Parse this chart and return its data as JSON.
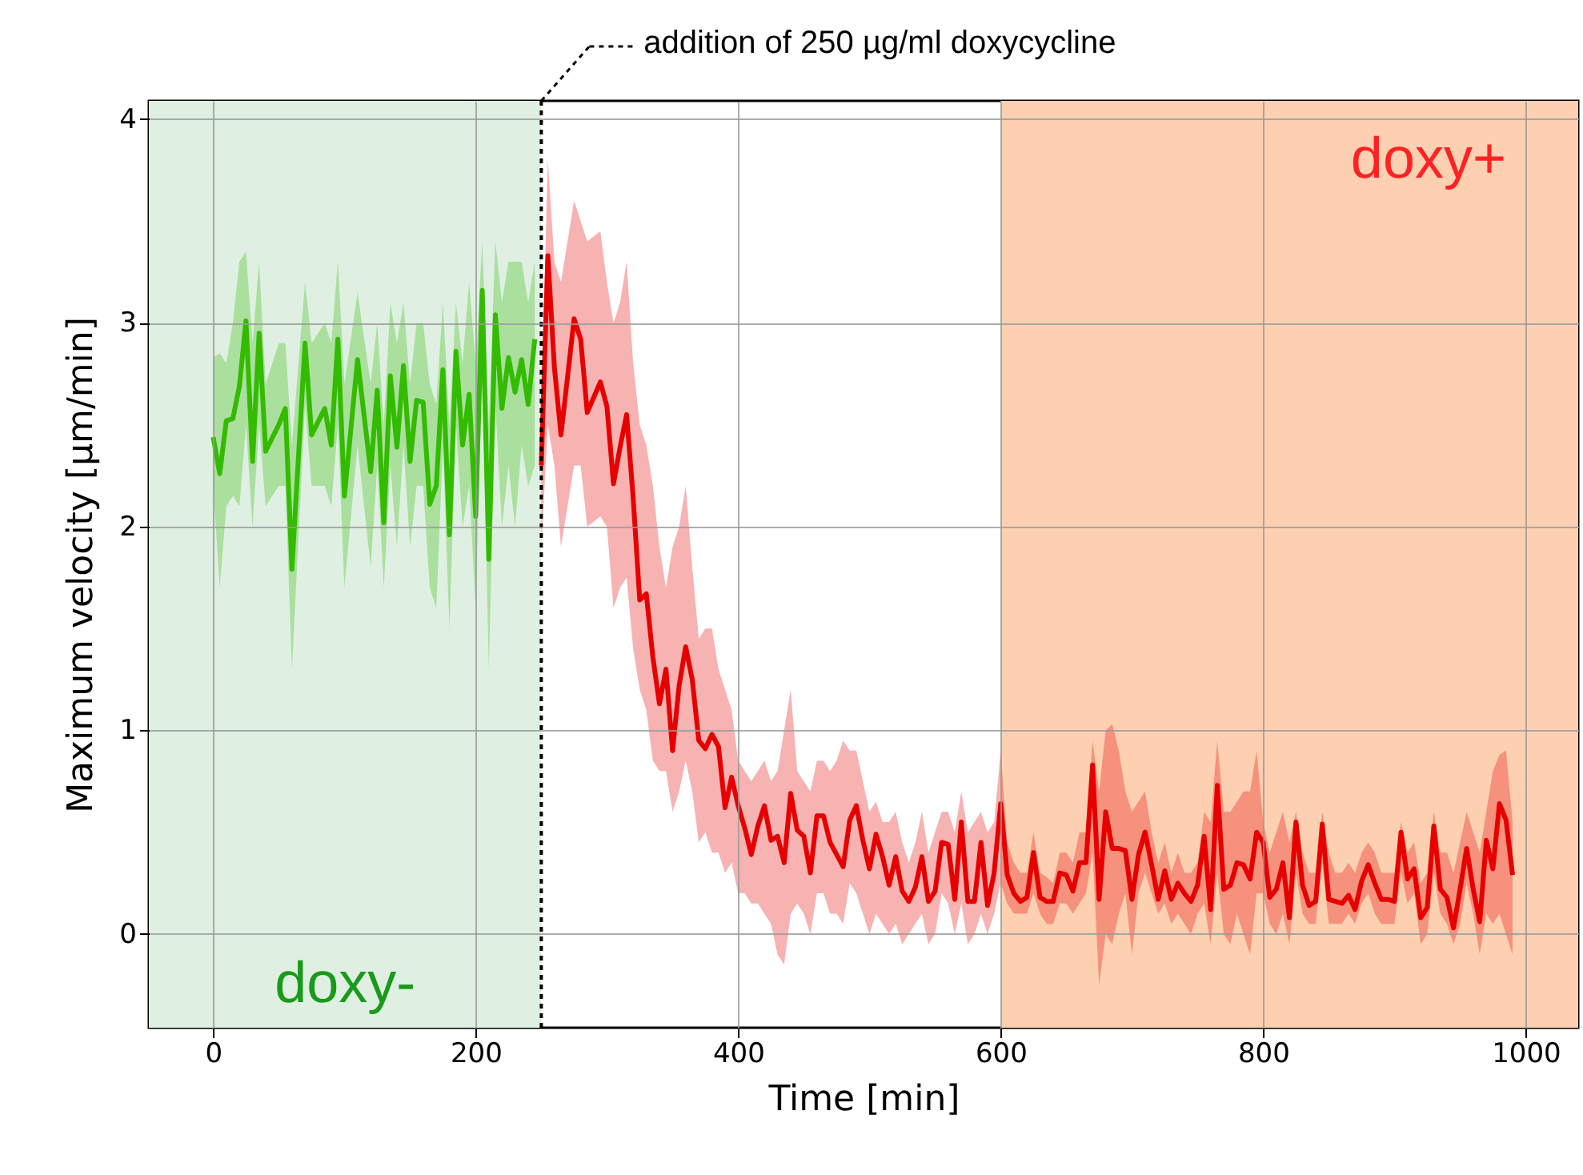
{
  "chart_data": {
    "type": "line",
    "xlabel": "Time [min]",
    "ylabel": "Maximum velocity [µm/min]",
    "xlim": [
      -49,
      1040
    ],
    "ylim": [
      -0.46,
      4.09
    ],
    "xticks": [
      0,
      200,
      400,
      600,
      800,
      1000
    ],
    "yticks": [
      0,
      1,
      2,
      3,
      4
    ],
    "grid": true,
    "series": [
      {
        "color": "#33bb00",
        "x": [
          0,
          5,
          10,
          15,
          20,
          25,
          30,
          35,
          40,
          50,
          55,
          60,
          70,
          75,
          85,
          90,
          95,
          100,
          110,
          120,
          125,
          130,
          135,
          140,
          145,
          150,
          155,
          160,
          165,
          170,
          175,
          180,
          185,
          190,
          195,
          200,
          205,
          210,
          215,
          220,
          225,
          230,
          235,
          240,
          245
        ],
        "values": [
          2.44,
          2.26,
          2.52,
          2.53,
          2.69,
          3.01,
          2.32,
          2.95,
          2.37,
          2.5,
          2.58,
          1.79,
          2.9,
          2.45,
          2.58,
          2.4,
          2.92,
          2.15,
          2.82,
          2.27,
          2.67,
          2.02,
          2.74,
          2.39,
          2.79,
          2.32,
          2.62,
          2.61,
          2.11,
          2.2,
          2.77,
          1.96,
          2.86,
          2.4,
          2.65,
          2.05,
          3.16,
          1.84,
          3.04,
          2.58,
          2.83,
          2.66,
          2.82,
          2.6,
          2.92
        ],
        "upper": [
          2.83,
          2.85,
          2.8,
          3.0,
          3.3,
          3.35,
          2.9,
          3.3,
          2.7,
          2.9,
          2.9,
          2.4,
          3.2,
          2.9,
          3.0,
          2.9,
          3.3,
          2.7,
          3.15,
          2.7,
          3.0,
          2.5,
          3.1,
          2.9,
          3.1,
          2.7,
          3.0,
          3.0,
          2.7,
          2.6,
          3.1,
          2.5,
          3.1,
          2.8,
          3.2,
          2.8,
          3.4,
          2.5,
          3.4,
          3.1,
          3.3,
          3.3,
          3.3,
          3.1,
          3.3
        ],
        "lower": [
          2.2,
          1.7,
          2.1,
          2.15,
          2.1,
          2.5,
          2.0,
          2.5,
          2.1,
          2.2,
          2.2,
          1.3,
          2.6,
          2.2,
          2.2,
          2.1,
          2.5,
          1.7,
          2.4,
          1.8,
          2.3,
          1.7,
          2.3,
          1.9,
          2.4,
          1.9,
          2.2,
          2.2,
          1.7,
          1.6,
          2.4,
          1.5,
          2.5,
          2.0,
          2.2,
          1.6,
          2.8,
          1.3,
          2.6,
          2.0,
          2.3,
          2.0,
          2.4,
          2.2,
          2.3
        ]
      },
      {
        "color": "#e60000",
        "x": [
          250,
          255,
          260,
          265,
          275,
          280,
          285,
          295,
          300,
          305,
          310,
          315,
          320,
          325,
          330,
          335,
          340,
          345,
          350,
          355,
          360,
          365,
          370,
          375,
          380,
          385,
          390,
          395,
          400,
          405,
          410,
          415,
          420,
          425,
          430,
          435,
          440,
          445,
          450,
          455,
          460,
          465,
          470,
          475,
          480,
          485,
          490,
          495,
          500,
          505,
          510,
          515,
          520,
          525,
          530,
          535,
          540,
          545,
          550,
          555,
          560,
          565,
          570,
          575,
          580,
          585,
          590,
          595,
          600,
          605,
          610,
          615,
          620,
          625,
          630,
          635,
          640,
          645,
          650,
          655,
          660,
          665,
          670,
          675,
          680,
          685,
          690,
          695,
          700,
          705,
          710,
          715,
          720,
          725,
          730,
          735,
          740,
          745,
          750,
          755,
          760,
          765,
          770,
          775,
          780,
          785,
          790,
          795,
          800,
          805,
          810,
          815,
          820,
          825,
          830,
          835,
          840,
          845,
          850,
          855,
          860,
          865,
          870,
          875,
          880,
          885,
          890,
          895,
          900,
          905,
          910,
          915,
          920,
          925,
          930,
          935,
          940,
          945,
          950,
          955,
          960,
          965,
          970,
          975,
          980,
          985,
          990
        ],
        "values": [
          2.3,
          3.33,
          2.78,
          2.45,
          3.02,
          2.92,
          2.56,
          2.71,
          2.59,
          2.21,
          2.39,
          2.55,
          2.14,
          1.64,
          1.67,
          1.36,
          1.13,
          1.3,
          0.9,
          1.22,
          1.41,
          1.25,
          0.95,
          0.91,
          0.98,
          0.92,
          0.62,
          0.77,
          0.63,
          0.52,
          0.39,
          0.53,
          0.63,
          0.46,
          0.48,
          0.35,
          0.69,
          0.51,
          0.48,
          0.3,
          0.58,
          0.58,
          0.45,
          0.39,
          0.33,
          0.56,
          0.63,
          0.46,
          0.32,
          0.49,
          0.38,
          0.24,
          0.38,
          0.21,
          0.16,
          0.23,
          0.38,
          0.16,
          0.21,
          0.45,
          0.44,
          0.17,
          0.55,
          0.16,
          0.16,
          0.45,
          0.14,
          0.3,
          0.64,
          0.29,
          0.2,
          0.16,
          0.18,
          0.4,
          0.18,
          0.16,
          0.16,
          0.3,
          0.29,
          0.21,
          0.35,
          0.35,
          0.83,
          0.17,
          0.6,
          0.42,
          0.42,
          0.41,
          0.17,
          0.39,
          0.5,
          0.34,
          0.17,
          0.31,
          0.17,
          0.25,
          0.2,
          0.16,
          0.24,
          0.48,
          0.12,
          0.73,
          0.22,
          0.24,
          0.35,
          0.34,
          0.27,
          0.5,
          0.45,
          0.18,
          0.22,
          0.35,
          0.08,
          0.55,
          0.24,
          0.14,
          0.16,
          0.54,
          0.17,
          0.16,
          0.15,
          0.19,
          0.12,
          0.26,
          0.34,
          0.25,
          0.17,
          0.17,
          0.16,
          0.5,
          0.27,
          0.32,
          0.08,
          0.13,
          0.53,
          0.22,
          0.18,
          0.03,
          0.22,
          0.42,
          0.22,
          0.06,
          0.46,
          0.32,
          0.64,
          0.56,
          0.29
        ],
        "upper": [
          2.6,
          3.8,
          3.3,
          3.2,
          3.6,
          3.5,
          3.4,
          3.45,
          3.2,
          3.0,
          3.1,
          3.3,
          2.8,
          2.5,
          2.4,
          2.2,
          1.9,
          1.7,
          1.9,
          2.0,
          2.2,
          1.8,
          1.45,
          1.5,
          1.5,
          1.3,
          1.2,
          1.1,
          0.85,
          0.8,
          0.75,
          0.8,
          0.85,
          0.75,
          0.8,
          1.0,
          1.2,
          0.8,
          0.75,
          0.7,
          0.85,
          0.85,
          0.8,
          0.85,
          0.95,
          0.9,
          0.9,
          0.75,
          0.6,
          0.65,
          0.55,
          0.55,
          0.6,
          0.45,
          0.35,
          0.45,
          0.6,
          0.4,
          0.5,
          0.6,
          0.6,
          0.5,
          0.7,
          0.5,
          0.55,
          0.6,
          0.5,
          0.55,
          0.9,
          0.45,
          0.35,
          0.3,
          0.3,
          0.5,
          0.3,
          0.28,
          0.25,
          0.4,
          0.4,
          0.35,
          0.5,
          0.5,
          0.95,
          0.7,
          1.0,
          1.03,
          0.9,
          0.7,
          0.6,
          0.65,
          0.7,
          0.5,
          0.35,
          0.45,
          0.3,
          0.4,
          0.3,
          0.3,
          0.35,
          0.6,
          0.55,
          0.95,
          0.6,
          0.6,
          0.65,
          0.7,
          0.7,
          0.9,
          0.55,
          0.4,
          0.5,
          0.6,
          0.45,
          0.6,
          0.4,
          0.3,
          0.3,
          0.6,
          0.4,
          0.3,
          0.3,
          0.35,
          0.3,
          0.4,
          0.45,
          0.4,
          0.3,
          0.3,
          0.3,
          0.55,
          0.4,
          0.45,
          0.25,
          0.3,
          0.6,
          0.4,
          0.4,
          0.3,
          0.45,
          0.6,
          0.5,
          0.4,
          0.6,
          0.8,
          0.88,
          0.9,
          0.55
        ],
        "lower": [
          1.9,
          2.5,
          2.3,
          1.9,
          2.3,
          2.3,
          2.0,
          2.05,
          2.0,
          1.6,
          1.7,
          1.75,
          1.4,
          1.2,
          1.1,
          0.85,
          0.8,
          0.8,
          0.6,
          0.7,
          0.85,
          0.7,
          0.45,
          0.5,
          0.4,
          0.4,
          0.3,
          0.35,
          0.2,
          0.2,
          0.15,
          0.15,
          0.1,
          0.05,
          -0.1,
          -0.15,
          0.1,
          0.15,
          0.1,
          0.0,
          0.2,
          0.2,
          0.1,
          0.1,
          0.05,
          0.25,
          0.2,
          0.1,
          0.0,
          0.1,
          0.05,
          0.0,
          0.05,
          -0.05,
          0.0,
          0.05,
          0.1,
          -0.05,
          0.0,
          0.2,
          0.15,
          0.0,
          0.15,
          -0.05,
          0.0,
          0.1,
          0.0,
          0.1,
          0.25,
          0.15,
          0.1,
          0.1,
          0.1,
          0.2,
          0.1,
          0.05,
          0.05,
          0.15,
          0.15,
          0.1,
          0.15,
          0.2,
          0.4,
          -0.25,
          0.0,
          -0.05,
          0.1,
          0.2,
          -0.1,
          0.2,
          0.3,
          0.2,
          0.1,
          0.15,
          0.05,
          0.1,
          0.05,
          0.0,
          0.1,
          0.15,
          -0.05,
          0.3,
          0.0,
          -0.05,
          0.1,
          0.0,
          -0.1,
          0.2,
          0.2,
          0.05,
          0.0,
          0.1,
          -0.05,
          0.3,
          0.1,
          0.05,
          0.05,
          0.35,
          0.05,
          0.05,
          0.05,
          0.1,
          0.05,
          0.15,
          0.2,
          0.1,
          0.05,
          0.05,
          0.05,
          0.3,
          0.15,
          0.2,
          -0.05,
          0.0,
          0.3,
          0.1,
          0.05,
          -0.05,
          0.05,
          0.25,
          0.1,
          -0.1,
          0.1,
          0.05,
          0.1,
          0.0,
          -0.1
        ]
      }
    ],
    "bands": [
      {
        "axis": "x",
        "from": -49,
        "to": 250,
        "label": "doxy-",
        "color": "#dff0e2"
      },
      {
        "axis": "x",
        "from": 600,
        "to": 1040,
        "label": "doxy+",
        "color": "#fdd0b2"
      }
    ],
    "ref_lines": [
      {
        "axis": "x",
        "value": 250,
        "label": "addition of 250 µg/ml doxycycline",
        "color": "#000000",
        "line_style": "dotted"
      }
    ]
  }
}
